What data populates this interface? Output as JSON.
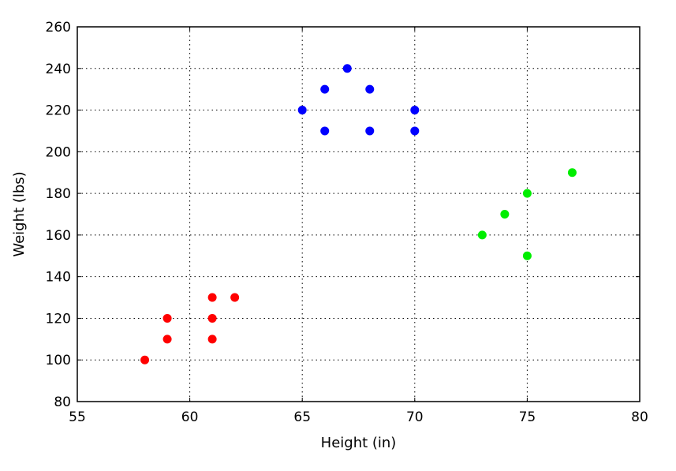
{
  "chart_data": {
    "type": "scatter",
    "title": "",
    "xlabel": "Height (in)",
    "ylabel": "Weight (lbs)",
    "xlim": [
      55,
      80
    ],
    "ylim": [
      80,
      260
    ],
    "xticks": [
      55,
      60,
      65,
      70,
      75,
      80
    ],
    "yticks": [
      80,
      100,
      120,
      140,
      160,
      180,
      200,
      220,
      240,
      260
    ],
    "grid": true,
    "legend": "none",
    "series": [
      {
        "color": "#ff0000",
        "points": [
          [
            58,
            100
          ],
          [
            59,
            110
          ],
          [
            59,
            120
          ],
          [
            61,
            110
          ],
          [
            61,
            120
          ],
          [
            61,
            130
          ],
          [
            62,
            130
          ]
        ]
      },
      {
        "color": "#0000ff",
        "points": [
          [
            65,
            220
          ],
          [
            66,
            210
          ],
          [
            66,
            230
          ],
          [
            67,
            240
          ],
          [
            68,
            210
          ],
          [
            68,
            230
          ],
          [
            70,
            210
          ],
          [
            70,
            220
          ]
        ]
      },
      {
        "color": "#00ee00",
        "points": [
          [
            73,
            160
          ],
          [
            74,
            170
          ],
          [
            75,
            150
          ],
          [
            75,
            180
          ],
          [
            77,
            190
          ]
        ]
      }
    ]
  }
}
